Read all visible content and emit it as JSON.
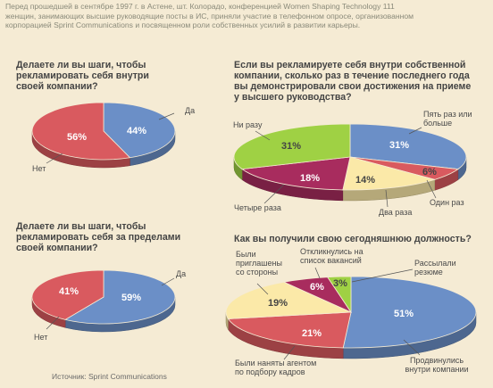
{
  "intro": "Перед прошедшей в сентябре 1997 г. в Астене, шт. Колорадо, конференцией Women Shaping Technology 111 женщин, занимающих высшие руководящие посты в ИС, приняли участие в телефонном опросе, организованном корпорацией Sprint Communications и посвященном роли собственных усилий в развитии карьеры.",
  "source": "Источник: Sprint Communications",
  "chart_data": [
    {
      "type": "pie",
      "title": "Делаете ли вы шаги, чтобы рекламировать себя внутри своей компании?",
      "slices": [
        {
          "label": "Да",
          "value": 44,
          "display": "44%",
          "color": "#6b8fc7"
        },
        {
          "label": "Нет",
          "value": 56,
          "display": "56%",
          "color": "#d95a5f"
        }
      ]
    },
    {
      "type": "pie",
      "title": "Если вы рекламируете себя внутри собственной компании, сколько раз в течение последнего года вы демонстрировали свои достижения на приеме у высшего руководства?",
      "slices": [
        {
          "label": "Пять раз или больше",
          "value": 31,
          "display": "31%",
          "color": "#6b8fc7"
        },
        {
          "label": "Один раз",
          "value": 6,
          "display": "6%",
          "color": "#d95a5f"
        },
        {
          "label": "Два раза",
          "value": 14,
          "display": "14%",
          "color": "#fbe9a8"
        },
        {
          "label": "Четыре раза",
          "value": 18,
          "display": "18%",
          "color": "#a82c5e"
        },
        {
          "label": "Ни разу",
          "value": 31,
          "display": "31%",
          "color": "#9fd144"
        }
      ]
    },
    {
      "type": "pie",
      "title": "Делаете ли вы шаги, чтобы рекламировать себя за пределами своей компании?",
      "slices": [
        {
          "label": "Да",
          "value": 59,
          "display": "59%",
          "color": "#6b8fc7"
        },
        {
          "label": "Нет",
          "value": 41,
          "display": "41%",
          "color": "#d95a5f"
        }
      ]
    },
    {
      "type": "pie",
      "title": "Как вы получили свою сегодняшнюю должность?",
      "slices": [
        {
          "label": "Продвинулись внутри компании",
          "value": 51,
          "display": "51%",
          "color": "#6b8fc7"
        },
        {
          "label": "Были наняты агентом по подбору кадров",
          "value": 21,
          "display": "21%",
          "color": "#d95a5f"
        },
        {
          "label": "Были приглашены со стороны",
          "value": 19,
          "display": "19%",
          "color": "#fbe9a8"
        },
        {
          "label": "Откликнулись на список вакансий",
          "value": 6,
          "display": "6%",
          "color": "#a82c5e"
        },
        {
          "label": "Рассылали резюме",
          "value": 3,
          "display": "3%",
          "color": "#9fd144"
        }
      ]
    }
  ]
}
